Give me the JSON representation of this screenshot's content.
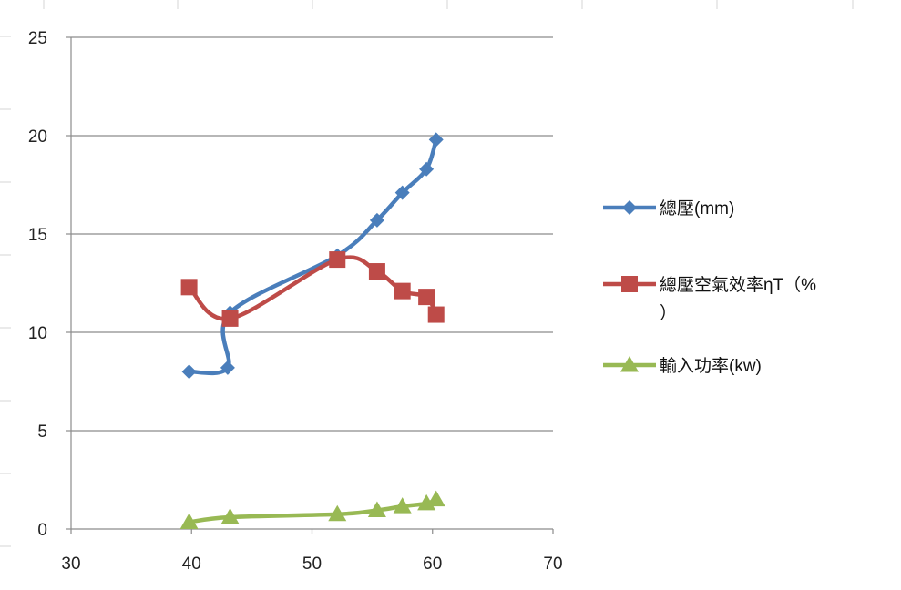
{
  "chart_data": {
    "type": "scatter",
    "title": "",
    "xlabel": "",
    "ylabel": "",
    "xlim": [
      30,
      70
    ],
    "ylim": [
      0,
      25
    ],
    "x_ticks": [
      "30",
      "40",
      "50",
      "60",
      "70"
    ],
    "y_ticks": [
      "0",
      "5",
      "10",
      "15",
      "20",
      "25"
    ],
    "grid": "horizontal major gridlines",
    "legend_position": "right",
    "series": [
      {
        "name": "總壓(mm)",
        "color": "#4a7ebb",
        "marker": "diamond",
        "smooth": true,
        "points": [
          [
            39.8,
            8.0
          ],
          [
            43.0,
            8.2
          ],
          [
            43.2,
            11.0
          ],
          [
            52.1,
            13.9
          ],
          [
            55.4,
            15.7
          ],
          [
            57.5,
            17.1
          ],
          [
            59.5,
            18.3
          ],
          [
            60.3,
            19.8
          ]
        ]
      },
      {
        "name": "總壓空氣效率ηT（%）",
        "color": "#be4b48",
        "marker": "square",
        "smooth": true,
        "points": [
          [
            39.8,
            12.3
          ],
          [
            43.2,
            10.7
          ],
          [
            52.1,
            13.7
          ],
          [
            55.4,
            13.1
          ],
          [
            57.5,
            12.1
          ],
          [
            59.5,
            11.8
          ],
          [
            60.3,
            10.9
          ]
        ]
      },
      {
        "name": "輸入功率(kw)",
        "color": "#98b954",
        "marker": "triangle",
        "smooth": true,
        "points": [
          [
            39.8,
            0.35
          ],
          [
            43.2,
            0.6
          ],
          [
            52.1,
            0.75
          ],
          [
            55.4,
            0.95
          ],
          [
            57.5,
            1.15
          ],
          [
            59.5,
            1.3
          ],
          [
            60.3,
            1.5
          ]
        ]
      }
    ]
  }
}
